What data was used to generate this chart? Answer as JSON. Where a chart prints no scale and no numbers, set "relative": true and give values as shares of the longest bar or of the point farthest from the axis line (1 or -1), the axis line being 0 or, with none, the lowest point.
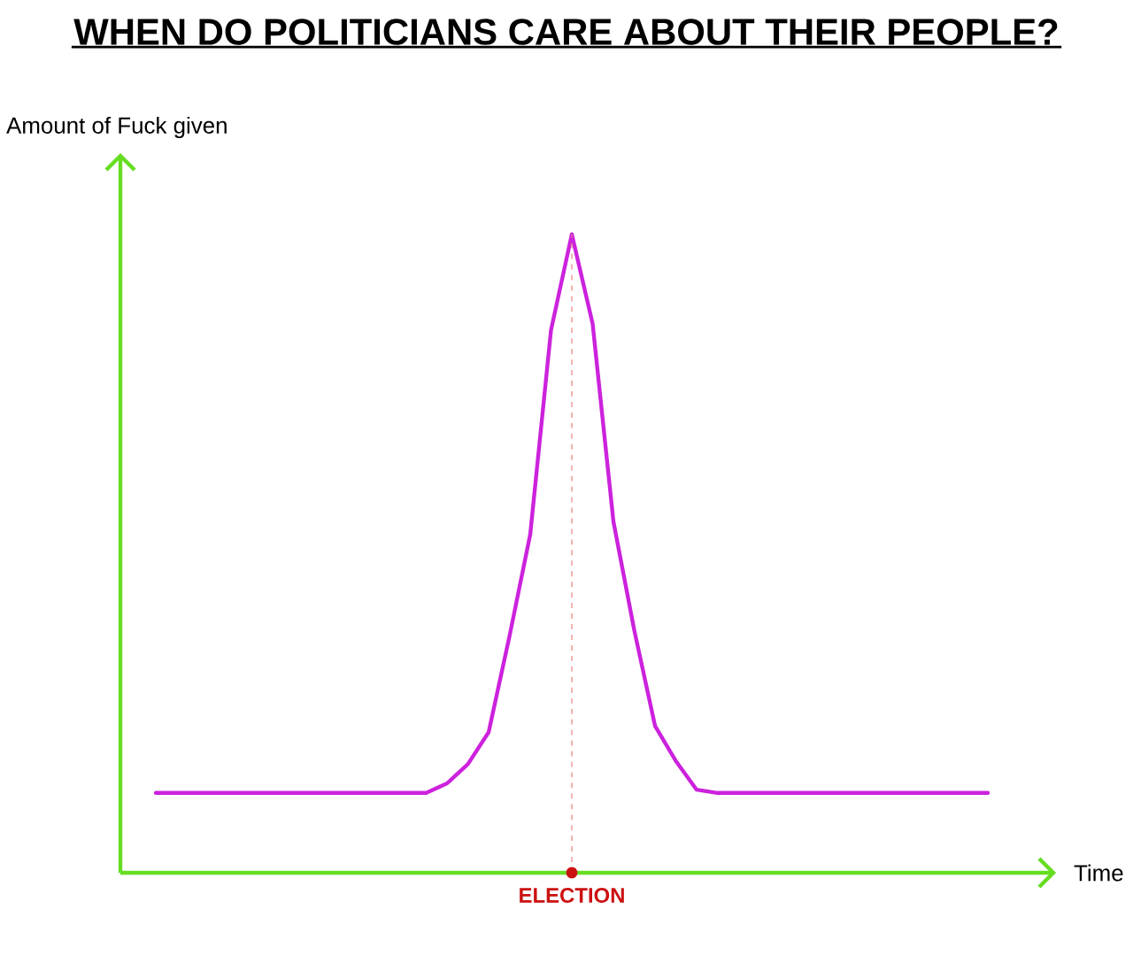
{
  "chart_data": {
    "type": "line",
    "title": "WHEN DO POLITICIANS CARE ABOUT THEIR PEOPLE?",
    "xlabel": "Time",
    "ylabel": "Amount of Fuck given",
    "relative": true,
    "categories": [
      null,
      null,
      null,
      null,
      null,
      null,
      null,
      null,
      null,
      null,
      null,
      null,
      null,
      null,
      null,
      null,
      null,
      null,
      null,
      null,
      null,
      null,
      null,
      null,
      null,
      null,
      null,
      null,
      null,
      null,
      null,
      null,
      null,
      null,
      null,
      null,
      null,
      null,
      null,
      null,
      null
    ],
    "series": [
      {
        "color": "#cc22dd",
        "values": [
          0.125,
          0.125,
          0.125,
          0.125,
          0.125,
          0.125,
          0.125,
          0.125,
          0.125,
          0.125,
          0.125,
          0.125,
          0.125,
          0.125,
          0.14,
          0.17,
          0.22,
          0.37,
          0.53,
          0.85,
          1,
          0.86,
          0.55,
          0.38,
          0.23,
          0.175,
          0.13,
          0.125,
          0.125,
          0.125,
          0.125,
          0.125,
          0.125,
          0.125,
          0.125,
          0.125,
          0.125,
          0.125,
          0.125,
          0.125,
          0.125
        ]
      }
    ],
    "annotations": [
      "ELECTION"
    ],
    "grid": false,
    "marker": "none",
    "line_style": "solid"
  }
}
